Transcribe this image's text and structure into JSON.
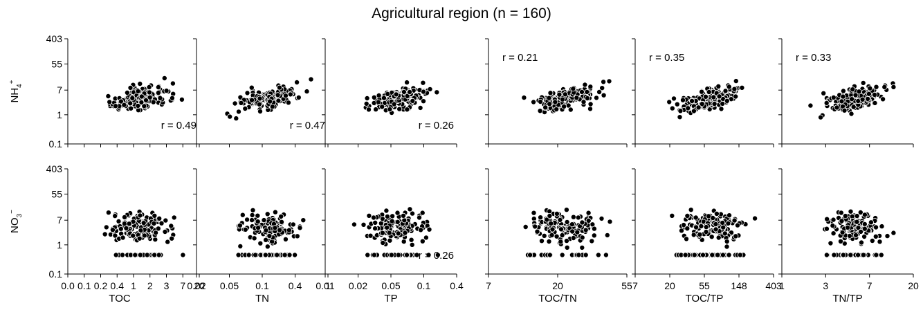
{
  "figure_title": "Agricultural region (n = 160)",
  "y_axis_ticks": [
    "403",
    "55",
    "7",
    "1",
    "0.1"
  ],
  "y_axis_values": [
    403,
    55,
    7,
    1,
    0.1
  ],
  "row_ylabels": {
    "NH4": {
      "base": "NH",
      "sub": "4",
      "sup": "+"
    },
    "NO3": {
      "base": "NO",
      "sub": "3",
      "sup": "−"
    }
  },
  "chart_data": [
    {
      "type": "scatter",
      "row": "NH4",
      "column": "TOC",
      "xlabel": "TOC",
      "xscale": "log",
      "xlim": [
        0.1,
        20
      ],
      "yscale": "log",
      "ylim": [
        0.1,
        403
      ],
      "x_ticks": [
        "0.0",
        "0.1",
        "0.2",
        "0.4",
        "1",
        "2",
        "3",
        "7",
        "20"
      ],
      "annotation": "r = 0.49",
      "r_pos": "bottom-right"
    },
    {
      "type": "scatter",
      "row": "NH4",
      "column": "TN",
      "xlabel": "TN",
      "xscale": "log",
      "xlim": [
        0.02,
        1
      ],
      "yscale": "log",
      "ylim": [
        0.1,
        403
      ],
      "x_ticks": [
        "0.02",
        "0.05",
        "0.1",
        "0.4",
        "1"
      ],
      "annotation": "r = 0.47",
      "r_pos": "bottom-right"
    },
    {
      "type": "scatter",
      "row": "NH4",
      "column": "TP",
      "xlabel": "TP",
      "xscale": "log",
      "xlim": [
        0.01,
        0.4
      ],
      "yscale": "log",
      "ylim": [
        0.1,
        403
      ],
      "x_ticks": [
        "0.01",
        "0.02",
        "0.05",
        "0.1",
        "0.4"
      ],
      "annotation": "r = 0.26",
      "r_pos": "bottom-right"
    },
    {
      "type": "scatter",
      "row": "NH4",
      "column": "TOC/TN",
      "xlabel": "TOC/TN",
      "xscale": "log",
      "xlim": [
        7,
        55
      ],
      "yscale": "log",
      "ylim": [
        0.1,
        403
      ],
      "x_ticks": [
        "7",
        "20",
        "55"
      ],
      "annotation": "r = 0.21",
      "r_pos": "top-left"
    },
    {
      "type": "scatter",
      "row": "NH4",
      "column": "TOC/TP",
      "xlabel": "TOC/TP",
      "xscale": "log",
      "xlim": [
        7,
        403
      ],
      "yscale": "log",
      "ylim": [
        0.1,
        403
      ],
      "x_ticks": [
        "7",
        "20",
        "55",
        "148",
        "403"
      ],
      "annotation": "r = 0.35",
      "r_pos": "top-left"
    },
    {
      "type": "scatter",
      "row": "NH4",
      "column": "TN/TP",
      "xlabel": "TN/TP",
      "xscale": "log",
      "xlim": [
        1,
        20
      ],
      "yscale": "log",
      "ylim": [
        0.1,
        403
      ],
      "x_ticks": [
        "1",
        "3",
        "7",
        "20"
      ],
      "annotation": "r = 0.33",
      "r_pos": "top-left"
    },
    {
      "type": "scatter",
      "row": "NO3",
      "column": "TOC",
      "xlabel": "TOC",
      "xscale": "log",
      "xlim": [
        0.1,
        20
      ],
      "yscale": "log",
      "ylim": [
        0.1,
        403
      ],
      "x_ticks": [
        "0.0",
        "0.1",
        "0.2",
        "0.4",
        "1",
        "2",
        "3",
        "7",
        "20"
      ],
      "annotation": "",
      "r_pos": ""
    },
    {
      "type": "scatter",
      "row": "NO3",
      "column": "TN",
      "xlabel": "TN",
      "xscale": "log",
      "xlim": [
        0.02,
        1
      ],
      "yscale": "log",
      "ylim": [
        0.1,
        403
      ],
      "x_ticks": [
        "0.02",
        "0.05",
        "0.1",
        "0.4",
        "1"
      ],
      "annotation": "",
      "r_pos": ""
    },
    {
      "type": "scatter",
      "row": "NO3",
      "column": "TP",
      "xlabel": "TP",
      "xscale": "log",
      "xlim": [
        0.01,
        0.4
      ],
      "yscale": "log",
      "ylim": [
        0.1,
        403
      ],
      "x_ticks": [
        "0.01",
        "0.02",
        "0.05",
        "0.1",
        "0.4"
      ],
      "annotation": "r = 0.26",
      "r_pos": "bottom-right"
    },
    {
      "type": "scatter",
      "row": "NO3",
      "column": "TOC/TN",
      "xlabel": "TOC/TN",
      "xscale": "log",
      "xlim": [
        7,
        55
      ],
      "yscale": "log",
      "ylim": [
        0.1,
        403
      ],
      "x_ticks": [
        "7",
        "20",
        "55"
      ],
      "annotation": "",
      "r_pos": ""
    },
    {
      "type": "scatter",
      "row": "NO3",
      "column": "TOC/TP",
      "xlabel": "TOC/TP",
      "xscale": "log",
      "xlim": [
        7,
        403
      ],
      "yscale": "log",
      "ylim": [
        0.1,
        403
      ],
      "x_ticks": [
        "7",
        "20",
        "55",
        "148",
        "403"
      ],
      "annotation": "",
      "r_pos": ""
    },
    {
      "type": "scatter",
      "row": "NO3",
      "column": "TN/TP",
      "xlabel": "TN/TP",
      "xscale": "log",
      "xlim": [
        1,
        20
      ],
      "yscale": "log",
      "ylim": [
        0.1,
        403
      ],
      "x_ticks": [
        "1",
        "3",
        "7",
        "20"
      ],
      "annotation": "",
      "r_pos": ""
    }
  ],
  "point_style": {
    "fill": "#000000",
    "stroke": "#ffffff"
  }
}
